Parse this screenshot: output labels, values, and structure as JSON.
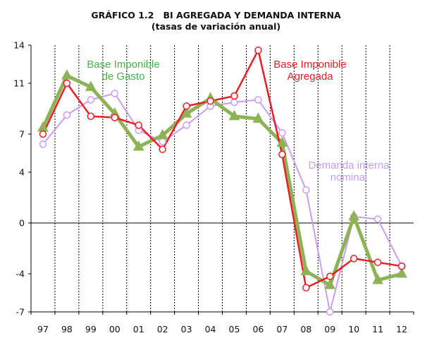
{
  "title": "GRÁFICO 1.2   BI AGREGADA Y DEMANDA INTERNA",
  "subtitle": "(tasas de variación anual)",
  "colors": {
    "bi_agregada": "#ee1c25",
    "bi_gasto": "#8db356",
    "demanda": "#cc9cf0",
    "grid": "#000000",
    "annot_bi_agregada": "#ee1c25",
    "annot_bi_gasto": "#48b048",
    "annot_demanda": "#c79cf5"
  },
  "chart_data": {
    "type": "line",
    "categories": [
      "97",
      "98",
      "99",
      "00",
      "01",
      "02",
      "03",
      "04",
      "05",
      "06",
      "07",
      "08",
      "09",
      "10",
      "11",
      "12"
    ],
    "ylim": [
      -7,
      14
    ],
    "yticks": [
      -7,
      -4,
      0,
      4,
      7,
      11,
      14
    ],
    "grid": "vertical dashed lines between categories",
    "series": [
      {
        "key": "demanda",
        "marker": "open-circle",
        "values": [
          6.2,
          8.5,
          9.7,
          10.2,
          7.3,
          6.4,
          7.7,
          9.2,
          9.5,
          9.7,
          7.1,
          2.6,
          -7.0,
          0.5,
          0.3,
          -3.4
        ]
      },
      {
        "key": "bi_gasto",
        "marker": "triangle",
        "values": [
          7.5,
          11.6,
          10.7,
          8.6,
          6.0,
          6.9,
          8.6,
          9.8,
          8.4,
          8.2,
          6.3,
          -3.8,
          -4.9,
          0.5,
          -4.5,
          -4.0
        ]
      },
      {
        "key": "bi_agregada",
        "marker": "open-circle",
        "values": [
          7.0,
          11.0,
          8.4,
          8.3,
          7.7,
          5.8,
          9.2,
          9.6,
          10.0,
          13.6,
          5.4,
          -5.1,
          -4.2,
          -2.8,
          -3.1,
          -3.4
        ]
      }
    ],
    "annotations": [
      {
        "key": "bi_gasto",
        "lines": [
          "Base Imponible",
          "de Gasto"
        ]
      },
      {
        "key": "bi_agregada",
        "lines": [
          "Base Imponible",
          "Agregada"
        ]
      },
      {
        "key": "demanda",
        "lines": [
          "Demanda interna",
          "nominal"
        ]
      }
    ]
  }
}
